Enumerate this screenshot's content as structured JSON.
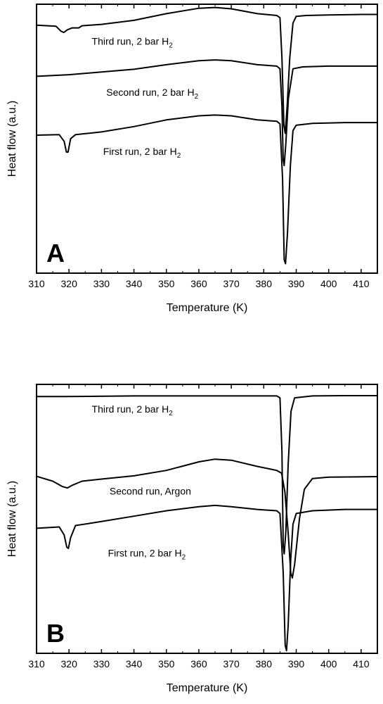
{
  "chart_data": [
    {
      "type": "line",
      "panel_label": "A",
      "xlabel": "Temperature (K)",
      "ylabel": "Heat flow (a.u.)",
      "xlim": [
        310,
        415
      ],
      "x_ticks": [
        "310",
        "320",
        "330",
        "340",
        "350",
        "360",
        "370",
        "380",
        "390",
        "400",
        "410"
      ],
      "grid": false,
      "y_ticks_shown": false,
      "series": [
        {
          "name": "Third run, 2 bar H2",
          "points": [
            [
              310,
              0.922
            ],
            [
              316,
              0.918
            ],
            [
              317.5,
              0.9
            ],
            [
              318.4,
              0.895
            ],
            [
              319.5,
              0.905
            ],
            [
              321,
              0.912
            ],
            [
              323,
              0.912
            ],
            [
              324,
              0.92
            ],
            [
              330,
              0.925
            ],
            [
              340,
              0.94
            ],
            [
              350,
              0.965
            ],
            [
              360,
              0.985
            ],
            [
              365,
              0.988
            ],
            [
              370,
              0.983
            ],
            [
              378,
              0.965
            ],
            [
              384,
              0.958
            ],
            [
              385,
              0.95
            ],
            [
              385.6,
              0.8
            ],
            [
              386.2,
              0.55
            ],
            [
              386.6,
              0.52
            ],
            [
              387.2,
              0.62
            ],
            [
              388,
              0.8
            ],
            [
              389,
              0.93
            ],
            [
              390,
              0.955
            ],
            [
              393,
              0.958
            ],
            [
              400,
              0.96
            ],
            [
              410,
              0.962
            ],
            [
              415,
              0.962
            ]
          ]
        },
        {
          "name": "Second run, 2 bar H2",
          "points": [
            [
              310,
              0.732
            ],
            [
              320,
              0.738
            ],
            [
              330,
              0.748
            ],
            [
              340,
              0.758
            ],
            [
              350,
              0.775
            ],
            [
              360,
              0.79
            ],
            [
              365,
              0.793
            ],
            [
              370,
              0.79
            ],
            [
              378,
              0.775
            ],
            [
              384,
              0.77
            ],
            [
              385,
              0.76
            ],
            [
              385.6,
              0.62
            ],
            [
              386.0,
              0.42
            ],
            [
              386.3,
              0.4
            ],
            [
              386.8,
              0.48
            ],
            [
              387.6,
              0.65
            ],
            [
              389,
              0.76
            ],
            [
              392,
              0.767
            ],
            [
              400,
              0.77
            ],
            [
              415,
              0.77
            ]
          ]
        },
        {
          "name": "First run, 2 bar H2",
          "points": [
            [
              310,
              0.513
            ],
            [
              317,
              0.515
            ],
            [
              318.5,
              0.49
            ],
            [
              319.2,
              0.45
            ],
            [
              319.7,
              0.45
            ],
            [
              320.5,
              0.5
            ],
            [
              322,
              0.515
            ],
            [
              330,
              0.525
            ],
            [
              340,
              0.545
            ],
            [
              350,
              0.57
            ],
            [
              360,
              0.585
            ],
            [
              365,
              0.588
            ],
            [
              370,
              0.585
            ],
            [
              378,
              0.57
            ],
            [
              384,
              0.565
            ],
            [
              385,
              0.555
            ],
            [
              385.8,
              0.35
            ],
            [
              386.3,
              0.05
            ],
            [
              386.7,
              0.035
            ],
            [
              387.3,
              0.15
            ],
            [
              388.2,
              0.4
            ],
            [
              389,
              0.53
            ],
            [
              390,
              0.55
            ],
            [
              395,
              0.557
            ],
            [
              405,
              0.56
            ],
            [
              415,
              0.56
            ]
          ]
        }
      ],
      "annotations": [
        {
          "text": "Third run, 2 bar H",
          "sub": "2",
          "x": 327,
          "y": 0.85
        },
        {
          "text": "Second run, 2 bar H",
          "sub": "2",
          "x": 331.5,
          "y": 0.66
        },
        {
          "text": "First run, 2 bar H",
          "sub": "2",
          "x": 330.5,
          "y": 0.44
        }
      ]
    },
    {
      "type": "line",
      "panel_label": "B",
      "xlabel": "Temperature (K)",
      "ylabel": "Heat flow (a.u.)",
      "xlim": [
        310,
        415
      ],
      "x_ticks": [
        "310",
        "320",
        "330",
        "340",
        "350",
        "360",
        "370",
        "380",
        "390",
        "400",
        "410"
      ],
      "grid": false,
      "y_ticks_shown": false,
      "series": [
        {
          "name": "Third run, 2 bar H2",
          "points": [
            [
              310,
              0.955
            ],
            [
              320,
              0.955
            ],
            [
              340,
              0.957
            ],
            [
              360,
              0.957
            ],
            [
              380,
              0.957
            ],
            [
              384,
              0.957
            ],
            [
              385,
              0.95
            ],
            [
              385.6,
              0.75
            ],
            [
              386.0,
              0.4
            ],
            [
              386.3,
              0.37
            ],
            [
              386.8,
              0.45
            ],
            [
              387.5,
              0.7
            ],
            [
              388.4,
              0.9
            ],
            [
              389.5,
              0.95
            ],
            [
              395,
              0.957
            ],
            [
              405,
              0.958
            ],
            [
              415,
              0.958
            ]
          ]
        },
        {
          "name": "Second run, Argon",
          "points": [
            [
              310,
              0.658
            ],
            [
              315,
              0.64
            ],
            [
              318,
              0.62
            ],
            [
              319.5,
              0.615
            ],
            [
              321,
              0.625
            ],
            [
              324,
              0.64
            ],
            [
              330,
              0.648
            ],
            [
              340,
              0.66
            ],
            [
              350,
              0.68
            ],
            [
              360,
              0.712
            ],
            [
              365,
              0.722
            ],
            [
              370,
              0.718
            ],
            [
              378,
              0.695
            ],
            [
              384,
              0.68
            ],
            [
              385.5,
              0.67
            ],
            [
              386.5,
              0.6
            ],
            [
              387.5,
              0.45
            ],
            [
              388.3,
              0.3
            ],
            [
              388.8,
              0.28
            ],
            [
              389.5,
              0.33
            ],
            [
              391,
              0.5
            ],
            [
              392.5,
              0.61
            ],
            [
              395,
              0.65
            ],
            [
              400,
              0.655
            ],
            [
              415,
              0.657
            ]
          ]
        },
        {
          "name": "First run, 2 bar H2",
          "points": [
            [
              310,
              0.465
            ],
            [
              317,
              0.47
            ],
            [
              318.5,
              0.44
            ],
            [
              319.3,
              0.395
            ],
            [
              319.8,
              0.39
            ],
            [
              320.5,
              0.43
            ],
            [
              322,
              0.475
            ],
            [
              330,
              0.49
            ],
            [
              340,
              0.51
            ],
            [
              350,
              0.53
            ],
            [
              360,
              0.545
            ],
            [
              365,
              0.55
            ],
            [
              370,
              0.545
            ],
            [
              378,
              0.535
            ],
            [
              384,
              0.53
            ],
            [
              385,
              0.52
            ],
            [
              386,
              0.3
            ],
            [
              386.6,
              0.03
            ],
            [
              387,
              0.01
            ],
            [
              387.5,
              0.1
            ],
            [
              388.3,
              0.35
            ],
            [
              389,
              0.48
            ],
            [
              390,
              0.52
            ],
            [
              395,
              0.53
            ],
            [
              405,
              0.535
            ],
            [
              415,
              0.535
            ]
          ]
        }
      ],
      "annotations": [
        {
          "text": "Third run, 2 bar H",
          "sub": "2",
          "x": 327,
          "y": 0.895
        },
        {
          "text": "Second run, Argon",
          "sub": "",
          "x": 332.5,
          "y": 0.59
        },
        {
          "text": "First run, 2 bar H",
          "sub": "2",
          "x": 332,
          "y": 0.36
        }
      ]
    }
  ]
}
